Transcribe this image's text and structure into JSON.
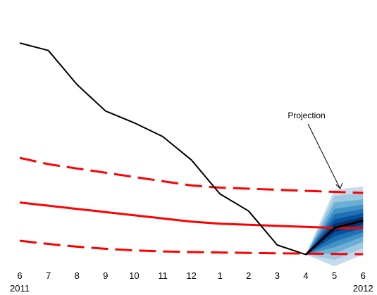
{
  "chart_data": {
    "type": "line",
    "title": "",
    "xlabel": "",
    "ylabel": "",
    "grid": false,
    "legend": "none",
    "x_ticks": [
      "6",
      "7",
      "8",
      "9",
      "10",
      "11",
      "12",
      "1",
      "2",
      "3",
      "4",
      "5",
      "6"
    ],
    "x_years": [
      {
        "label": "2011",
        "tick_index": 0
      },
      {
        "label": "2012",
        "tick_index": 12
      }
    ],
    "ylim": [
      0,
      100
    ],
    "series": [
      {
        "role": "observed",
        "color": "#000000",
        "style": "solid",
        "x": [
          0,
          1,
          2,
          3,
          4,
          5,
          6,
          7,
          8,
          9,
          10
        ],
        "y": [
          95,
          91.5,
          75.5,
          63,
          57.5,
          51,
          40,
          24,
          16,
          0,
          -4.5
        ]
      },
      {
        "role": "central",
        "color": "#ff0000",
        "style": "solid",
        "x": [
          0,
          1,
          2,
          3,
          4,
          5,
          6,
          7,
          8,
          9,
          10,
          11,
          12
        ],
        "y": [
          20,
          18.5,
          17,
          15.5,
          14,
          12.5,
          11,
          10,
          9.5,
          9,
          8.5,
          8,
          8
        ]
      },
      {
        "role": "upper-bound",
        "color": "#ff0000",
        "style": "dashed",
        "x": [
          0,
          1,
          2,
          3,
          4,
          5,
          6,
          7,
          8,
          9,
          10,
          11,
          12
        ],
        "y": [
          41,
          38,
          36,
          34,
          32,
          30,
          28,
          27,
          26.5,
          26,
          25.5,
          25,
          24.5
        ]
      },
      {
        "role": "lower-bound",
        "color": "#ff0000",
        "style": "dashed",
        "x": [
          0,
          1,
          2,
          3,
          4,
          5,
          6,
          7,
          8,
          9,
          10,
          11,
          12
        ],
        "y": [
          2,
          0.5,
          -0.8,
          -1.8,
          -2.5,
          -3,
          -3.3,
          -3.5,
          -3.7,
          -3.9,
          -4,
          -4.2,
          -4.3
        ]
      },
      {
        "role": "projection-median",
        "color": "#000000",
        "style": "solid",
        "x": [
          10,
          11,
          12
        ],
        "y": [
          -4.5,
          8,
          11.5
        ]
      }
    ],
    "projection_fan": {
      "x": [
        10,
        11,
        12
      ],
      "center": [
        -4.5,
        8,
        11.5
      ],
      "half_widths": [
        [
          0,
          2,
          1.7
        ],
        [
          0,
          4,
          3.5
        ],
        [
          0,
          6.5,
          5.5
        ],
        [
          0,
          9,
          7.5
        ],
        [
          0,
          12,
          10
        ],
        [
          0,
          15,
          13
        ],
        [
          0,
          18,
          16
        ]
      ],
      "colors": [
        "#08306b",
        "#08519c",
        "#2171b5",
        "#4292c6",
        "#6baed6",
        "#9ecae1",
        "#c6dbef"
      ]
    },
    "annotations": [
      {
        "text": "Projection",
        "point_to": {
          "x": 11.2,
          "y": 26.5
        }
      }
    ]
  }
}
